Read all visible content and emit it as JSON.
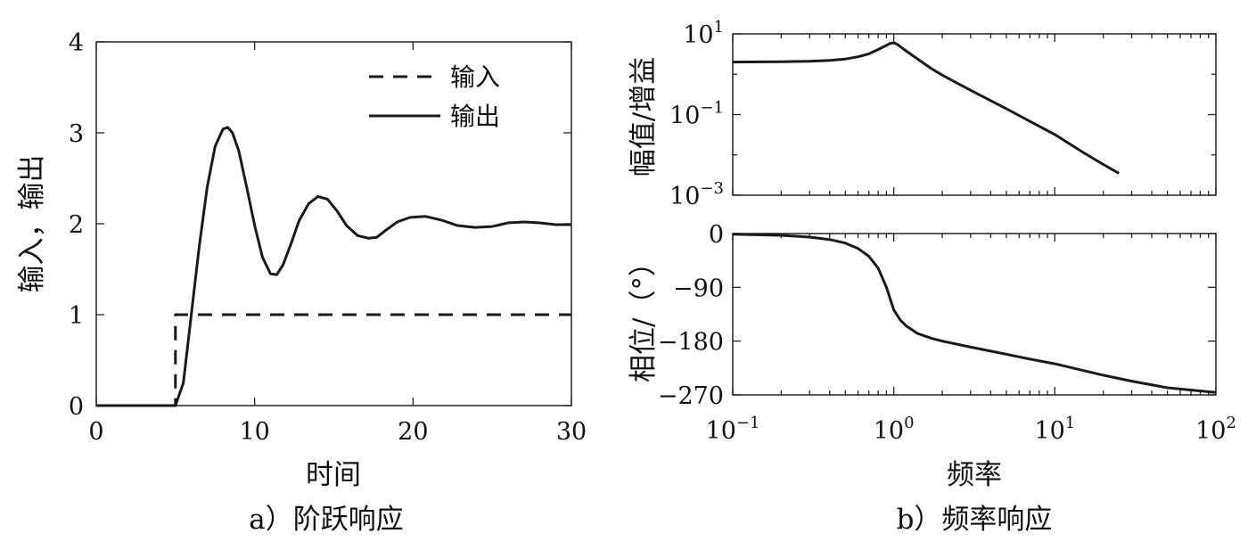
{
  "chart_data": [
    {
      "type": "line",
      "caption": "a）阶跃响应",
      "xlabel": "时间",
      "ylabel": "输入，输出",
      "xlim": [
        0,
        30
      ],
      "ylim": [
        0,
        4
      ],
      "xticks": [
        0,
        10,
        20,
        30
      ],
      "yticks": [
        0,
        1,
        2,
        3,
        4
      ],
      "xtick_labels": [
        "0",
        "10",
        "20",
        "30"
      ],
      "ytick_labels": [
        "0",
        "1",
        "2",
        "3",
        "4"
      ],
      "legend": {
        "position": "top-right"
      },
      "series": [
        {
          "name": "输入",
          "style": "dashed",
          "x": [
            0,
            5,
            5,
            30
          ],
          "y": [
            0,
            0,
            1,
            1
          ]
        },
        {
          "name": "输出",
          "style": "solid",
          "x": [
            0,
            5.0,
            5.5,
            6.0,
            6.5,
            7.0,
            7.5,
            8.0,
            8.3,
            8.6,
            9.0,
            9.5,
            10.0,
            10.5,
            11.0,
            11.4,
            11.8,
            12.3,
            12.8,
            13.4,
            14.0,
            14.6,
            15.2,
            15.8,
            16.5,
            17.2,
            17.7,
            18.3,
            19.0,
            19.8,
            20.8,
            21.8,
            22.8,
            23.9,
            25.0,
            26.0,
            27.0,
            28.0,
            29.0,
            30.0
          ],
          "y": [
            0,
            0,
            0.25,
            1.0,
            1.75,
            2.4,
            2.85,
            3.04,
            3.06,
            3.0,
            2.8,
            2.4,
            1.98,
            1.63,
            1.45,
            1.44,
            1.55,
            1.78,
            2.03,
            2.22,
            2.3,
            2.27,
            2.14,
            1.98,
            1.87,
            1.84,
            1.85,
            1.93,
            2.02,
            2.07,
            2.08,
            2.04,
            1.98,
            1.96,
            1.97,
            2.01,
            2.02,
            2.01,
            1.99,
            1.99
          ]
        }
      ]
    },
    {
      "type": "line",
      "caption": "b）频率响应",
      "xlabel": "频率",
      "xscale": "log",
      "xlim": [
        0.1,
        100
      ],
      "xtick_labels": [
        "10^-1",
        "10^0",
        "10^1",
        "10^2"
      ],
      "subplots": [
        {
          "ylabel": "幅值/增益",
          "yscale": "log",
          "ylim": [
            0.001,
            10
          ],
          "ytick_labels": [
            "10^1",
            "10^-1",
            "10^-3"
          ],
          "series": [
            {
              "name": "",
              "x": [
                0.1,
                0.2,
                0.3,
                0.4,
                0.5,
                0.6,
                0.7,
                0.8,
                0.9,
                0.95,
                1.0,
                1.05,
                1.1,
                1.2,
                1.4,
                1.7,
                2,
                3,
                5,
                7,
                10,
                15,
                20,
                25
              ],
              "y": [
                2.0,
                2.03,
                2.1,
                2.2,
                2.38,
                2.7,
                3.2,
                4.1,
                5.2,
                5.8,
                6.0,
                5.5,
                4.8,
                3.7,
                2.4,
                1.4,
                0.95,
                0.4,
                0.14,
                0.068,
                0.032,
                0.0115,
                0.0058,
                0.0035
              ]
            }
          ]
        },
        {
          "ylabel": "相位/（°）",
          "ylim": [
            -270,
            0
          ],
          "yticks": [
            0,
            -90,
            -180,
            -270
          ],
          "ytick_labels": [
            "0",
            "−90",
            "−180",
            "−270"
          ],
          "series": [
            {
              "name": "",
              "x": [
                0.1,
                0.2,
                0.3,
                0.4,
                0.5,
                0.6,
                0.7,
                0.8,
                0.9,
                1.0,
                1.1,
                1.2,
                1.4,
                1.7,
                2,
                3,
                5,
                7,
                10,
                20,
                30,
                50,
                100
              ],
              "y": [
                -1,
                -3,
                -6,
                -10,
                -16,
                -25,
                -38,
                -58,
                -90,
                -128,
                -145,
                -155,
                -167,
                -175,
                -180,
                -190,
                -202,
                -210,
                -218,
                -237,
                -247,
                -258,
                -266
              ]
            }
          ]
        }
      ]
    }
  ]
}
